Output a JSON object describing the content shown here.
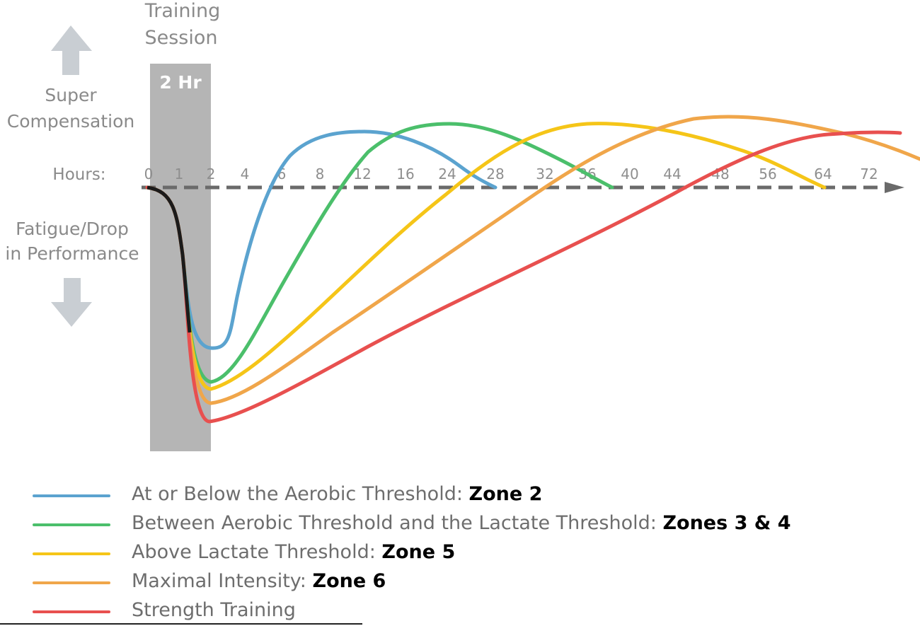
{
  "labels": {
    "session": [
      "Training",
      "Session"
    ],
    "session_box": "2 Hr",
    "super_comp": [
      "Super",
      "Compensation"
    ],
    "hours": "Hours:",
    "fatigue": [
      "Fatigue/Drop",
      "in Performance"
    ]
  },
  "chart_data": {
    "type": "line",
    "xlabel": "Hours:",
    "x_ticks": [
      "0",
      "1",
      "2",
      "4",
      "6",
      "8",
      "12",
      "16",
      "24",
      "28",
      "32",
      "36",
      "40",
      "44",
      "48",
      "56",
      "64",
      "72"
    ],
    "y_axis": {
      "up": "Super Compensation",
      "down": "Fatigue/Drop in Performance"
    },
    "training_session": {
      "start": "0",
      "end": "2",
      "label": "2 Hr"
    },
    "series": [
      {
        "name": "At or Below the Aerobic Threshold",
        "zone": "Zone 2",
        "color": "#5ba3cf",
        "trough_at": "2",
        "recover_at": "6",
        "peak_at": "12",
        "returns_at": "28"
      },
      {
        "name": "Between Aerobic Threshold and the Lactate Threshold",
        "zone": "Zones 3 & 4",
        "color": "#4bbf6b",
        "trough_at": "2",
        "recover_at": "12",
        "peak_at": "24",
        "returns_at": "36"
      },
      {
        "name": "Above Lactate Threshold",
        "zone": "Zone 5",
        "color": "#f5c518",
        "trough_at": "2",
        "recover_at": "24",
        "peak_at": "36",
        "returns_at": "64"
      },
      {
        "name": "Maximal Intensity",
        "zone": "Zone 6",
        "color": "#f0a64a",
        "trough_at": "2",
        "recover_at": "32",
        "peak_at": "48"
      },
      {
        "name": "Strength Training",
        "zone": "",
        "color": "#e8504f",
        "trough_at": "2",
        "recover_at": "48",
        "peak_at": "72"
      }
    ]
  },
  "legend": [
    {
      "text": "At or Below the Aerobic Threshold: ",
      "zone": "Zone 2",
      "color": "#5ba3cf"
    },
    {
      "text": "Between Aerobic Threshold and the Lactate Threshold: ",
      "zone": "Zones 3 & 4",
      "color": "#4bbf6b"
    },
    {
      "text": "Above Lactate Threshold: ",
      "zone": "Zone 5",
      "color": "#f5c518"
    },
    {
      "text": "Maximal Intensity: ",
      "zone": "Zone 6",
      "color": "#f0a64a"
    },
    {
      "text": "Strength Training",
      "zone": "",
      "color": "#e8504f"
    }
  ],
  "icons": {
    "up": "arrow-up-icon",
    "down": "arrow-down-icon"
  }
}
